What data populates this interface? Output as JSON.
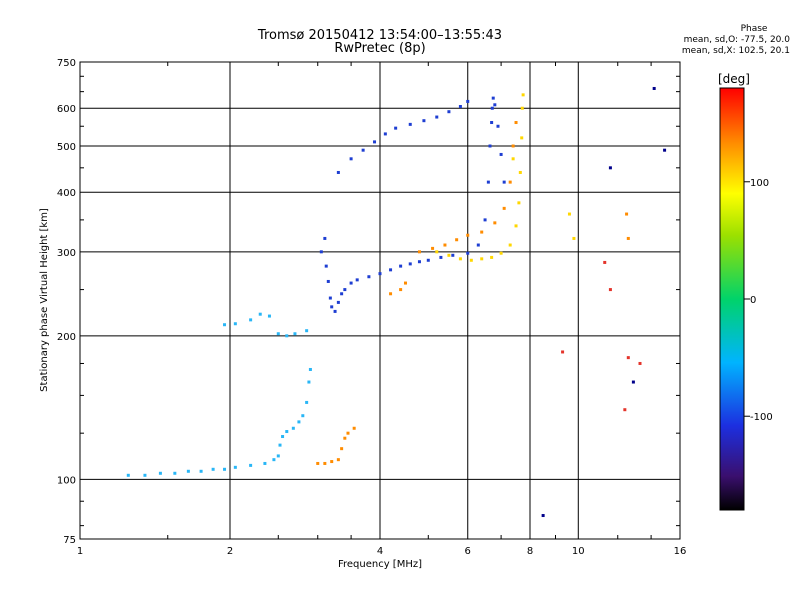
{
  "header": {
    "title": "Tromsø 20150412 13:54:00–13:55:43",
    "subtitle": "RwPretec (8p)"
  },
  "phase_info": {
    "label": "Phase",
    "line_o": "mean, sd,O: -77.5, 20.0",
    "line_x": "mean, sd,X: 102.5, 20.1"
  },
  "colorbar": {
    "unit": "[deg]",
    "ticks": [
      "100",
      "0",
      "-100"
    ],
    "range": [
      -180,
      180
    ]
  },
  "chart_data": {
    "type": "scatter",
    "xlabel": "Frequency [MHz]",
    "ylabel": "Stationary phase Virtual Height [km]",
    "xscale": "log",
    "yscale": "log",
    "xlim": [
      1,
      16
    ],
    "ylim": [
      75,
      750
    ],
    "xticks": [
      "1",
      "2",
      "4",
      "6",
      "8",
      "10",
      "16"
    ],
    "yticks": [
      "75",
      "100",
      "200",
      "300",
      "400",
      "500",
      "600",
      "750"
    ],
    "grid": true,
    "series": [
      {
        "color": "#29b6f6",
        "points": [
          [
            1.25,
            102
          ],
          [
            1.35,
            102
          ],
          [
            1.45,
            103
          ],
          [
            1.55,
            103
          ],
          [
            1.65,
            104
          ],
          [
            1.75,
            104
          ],
          [
            1.85,
            105
          ],
          [
            1.95,
            105
          ],
          [
            2.05,
            106
          ],
          [
            2.2,
            107
          ],
          [
            2.35,
            108
          ],
          [
            2.45,
            110
          ],
          [
            2.5,
            112
          ],
          [
            2.52,
            118
          ],
          [
            2.55,
            123
          ],
          [
            2.6,
            126
          ],
          [
            2.68,
            128
          ],
          [
            2.75,
            132
          ],
          [
            2.8,
            136
          ],
          [
            2.85,
            145
          ],
          [
            2.88,
            160
          ],
          [
            2.9,
            170
          ],
          [
            1.95,
            211
          ],
          [
            2.05,
            212
          ],
          [
            2.2,
            216
          ],
          [
            2.3,
            222
          ],
          [
            2.4,
            220
          ],
          [
            2.5,
            202
          ],
          [
            2.6,
            200
          ],
          [
            2.7,
            202
          ],
          [
            2.85,
            205
          ]
        ]
      },
      {
        "color": "#1e3ed2",
        "points": [
          [
            3.05,
            300
          ],
          [
            3.1,
            320
          ],
          [
            3.12,
            280
          ],
          [
            3.15,
            260
          ],
          [
            3.18,
            240
          ],
          [
            3.2,
            230
          ],
          [
            3.25,
            225
          ],
          [
            3.3,
            235
          ],
          [
            3.35,
            245
          ],
          [
            3.4,
            250
          ],
          [
            3.5,
            258
          ],
          [
            3.6,
            262
          ],
          [
            3.8,
            266
          ],
          [
            4.0,
            270
          ],
          [
            4.2,
            275
          ],
          [
            4.4,
            280
          ],
          [
            4.6,
            283
          ],
          [
            4.8,
            286
          ],
          [
            5.0,
            288
          ],
          [
            5.3,
            292
          ],
          [
            5.6,
            295
          ],
          [
            6.0,
            298
          ],
          [
            6.3,
            310
          ],
          [
            6.5,
            350
          ],
          [
            6.6,
            420
          ],
          [
            6.65,
            500
          ],
          [
            6.7,
            560
          ],
          [
            6.72,
            600
          ],
          [
            6.75,
            630
          ],
          [
            6.8,
            610
          ],
          [
            6.9,
            550
          ],
          [
            7.0,
            480
          ],
          [
            7.1,
            420
          ],
          [
            3.3,
            440
          ],
          [
            3.5,
            470
          ],
          [
            3.7,
            490
          ],
          [
            3.9,
            510
          ],
          [
            4.1,
            530
          ],
          [
            4.3,
            545
          ],
          [
            4.6,
            555
          ],
          [
            4.9,
            565
          ],
          [
            5.2,
            575
          ],
          [
            5.5,
            590
          ],
          [
            5.8,
            605
          ],
          [
            6.0,
            620
          ]
        ]
      },
      {
        "color": "#ffd700",
        "points": [
          [
            5.2,
            300
          ],
          [
            5.5,
            295
          ],
          [
            5.8,
            290
          ],
          [
            6.1,
            288
          ],
          [
            6.4,
            290
          ],
          [
            6.7,
            292
          ],
          [
            7.0,
            298
          ],
          [
            7.3,
            310
          ],
          [
            7.5,
            340
          ],
          [
            7.6,
            380
          ],
          [
            7.65,
            440
          ],
          [
            7.7,
            520
          ],
          [
            7.72,
            600
          ],
          [
            7.75,
            640
          ],
          [
            7.4,
            470
          ],
          [
            9.6,
            360
          ],
          [
            9.8,
            320
          ]
        ]
      },
      {
        "color": "#ff8c00",
        "points": [
          [
            3.0,
            108
          ],
          [
            3.1,
            108
          ],
          [
            3.2,
            109
          ],
          [
            3.3,
            110
          ],
          [
            3.35,
            116
          ],
          [
            3.4,
            122
          ],
          [
            3.45,
            125
          ],
          [
            3.55,
            128
          ],
          [
            4.2,
            245
          ],
          [
            4.4,
            250
          ],
          [
            4.5,
            258
          ],
          [
            4.8,
            300
          ],
          [
            5.1,
            305
          ],
          [
            5.4,
            310
          ],
          [
            5.7,
            318
          ],
          [
            6.0,
            325
          ],
          [
            6.4,
            330
          ],
          [
            6.8,
            345
          ],
          [
            7.1,
            370
          ],
          [
            7.3,
            420
          ],
          [
            7.4,
            500
          ],
          [
            7.5,
            560
          ],
          [
            12.5,
            360
          ],
          [
            12.6,
            320
          ]
        ]
      },
      {
        "color": "#e4342b",
        "points": [
          [
            9.3,
            185
          ],
          [
            11.3,
            285
          ],
          [
            11.6,
            250
          ],
          [
            12.4,
            140
          ],
          [
            12.6,
            180
          ],
          [
            13.3,
            175
          ]
        ]
      },
      {
        "color": "#00008b",
        "points": [
          [
            8.5,
            84
          ],
          [
            11.6,
            450
          ],
          [
            12.9,
            160
          ],
          [
            14.9,
            490
          ],
          [
            14.2,
            660
          ]
        ]
      }
    ]
  }
}
